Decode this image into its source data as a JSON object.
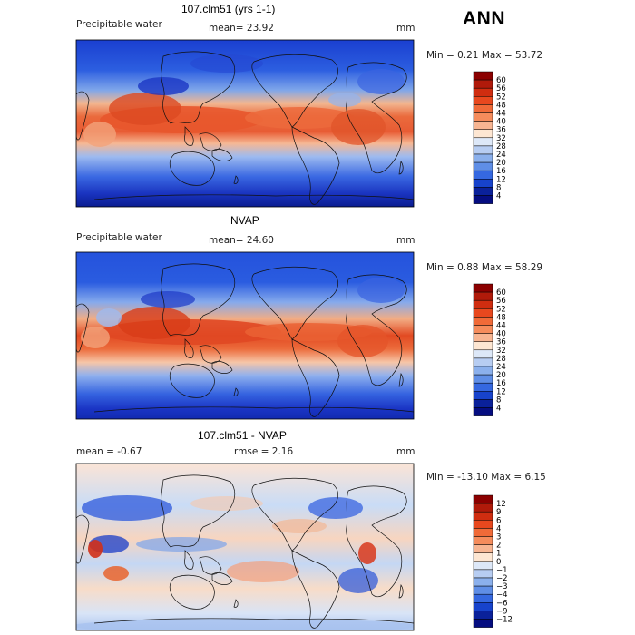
{
  "season": "ANN",
  "panels": [
    {
      "title": "107.clm51 (yrs 1-1)",
      "left_label": "Precipitable water",
      "mid_label": "mean=  23.92",
      "units": "mm",
      "min_max": "Min =   0.21 Max =  53.72",
      "colorbar_levels": [
        "60",
        "56",
        "52",
        "48",
        "44",
        "40",
        "36",
        "32",
        "28",
        "24",
        "20",
        "16",
        "12",
        "8",
        "4"
      ]
    },
    {
      "title": "NVAP",
      "left_label": "Precipitable water",
      "mid_label": "mean=  24.60",
      "units": "mm",
      "min_max": "Min =   0.88 Max =  58.29",
      "colorbar_levels": [
        "60",
        "56",
        "52",
        "48",
        "44",
        "40",
        "36",
        "32",
        "28",
        "24",
        "20",
        "16",
        "12",
        "8",
        "4"
      ]
    },
    {
      "title": "107.clm51 - NVAP",
      "left_label": "mean =  -0.67",
      "mid_label": "rmse =   2.16",
      "units": "mm",
      "min_max": "Min = -13.10 Max =   6.15",
      "colorbar_levels": [
        "12",
        "9",
        "6",
        "4",
        "3",
        "2",
        "1",
        "0",
        "−1",
        "−2",
        "−3",
        "−4",
        "−6",
        "−9",
        "−12"
      ]
    }
  ],
  "colors": {
    "abs_scale": [
      "#8b0000",
      "#b01a0a",
      "#d02d10",
      "#e8481e",
      "#f06a38",
      "#f58c5c",
      "#f7b592",
      "#fde6d2",
      "#dde8f8",
      "#b7cdf2",
      "#8bb0ec",
      "#5f8ee6",
      "#3568e0",
      "#1743cc",
      "#0a219a",
      "#050d80"
    ],
    "diff_scale": [
      "#8b0000",
      "#b01a0a",
      "#d02d10",
      "#e8481e",
      "#f06a38",
      "#f58c5c",
      "#f7b592",
      "#fde6d2",
      "#dde8f8",
      "#b7cdf2",
      "#8bb0ec",
      "#5f8ee6",
      "#3568e0",
      "#1743cc",
      "#0a219a",
      "#050d80"
    ]
  }
}
